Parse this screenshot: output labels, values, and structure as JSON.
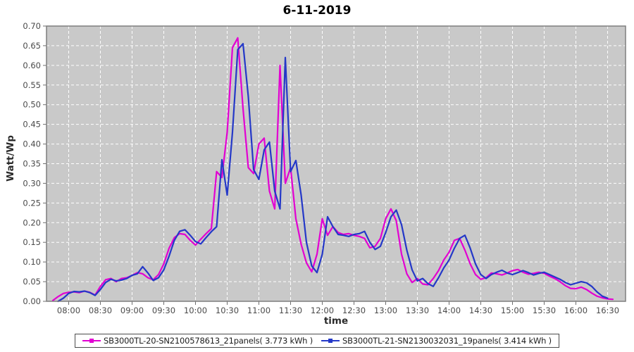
{
  "chart_data": {
    "type": "line",
    "title": "6-11-2019",
    "xlabel": "time",
    "ylabel": "Watt/Wp",
    "ylim": [
      0.0,
      0.7
    ],
    "yticks": [
      "0.00",
      "0.05",
      "0.10",
      "0.15",
      "0.20",
      "0.25",
      "0.30",
      "0.35",
      "0.40",
      "0.45",
      "0.50",
      "0.55",
      "0.60",
      "0.65",
      "0.70"
    ],
    "xticks": [
      "08:00",
      "08:30",
      "09:00",
      "09:30",
      "10:00",
      "10:30",
      "11:00",
      "11:30",
      "12:00",
      "12:30",
      "13:00",
      "13:30",
      "14:00",
      "14:30",
      "15:00",
      "15:30",
      "16:00",
      "16:30"
    ],
    "x_range_minutes": [
      459,
      1007
    ],
    "grid": true,
    "grid_color": "#ffffff",
    "plot_bg": "#c9c9c9",
    "legend_position": "bottom",
    "x": [
      "07:45",
      "07:50",
      "07:55",
      "08:00",
      "08:05",
      "08:10",
      "08:15",
      "08:20",
      "08:25",
      "08:30",
      "08:35",
      "08:40",
      "08:45",
      "08:50",
      "08:55",
      "09:00",
      "09:05",
      "09:10",
      "09:15",
      "09:20",
      "09:25",
      "09:30",
      "09:35",
      "09:40",
      "09:45",
      "09:50",
      "09:55",
      "10:00",
      "10:05",
      "10:10",
      "10:15",
      "10:20",
      "10:25",
      "10:30",
      "10:35",
      "10:40",
      "10:45",
      "10:50",
      "10:55",
      "11:00",
      "11:05",
      "11:10",
      "11:15",
      "11:20",
      "11:25",
      "11:30",
      "11:35",
      "11:40",
      "11:45",
      "11:50",
      "11:55",
      "12:00",
      "12:05",
      "12:10",
      "12:15",
      "12:20",
      "12:25",
      "12:30",
      "12:35",
      "12:40",
      "12:45",
      "12:50",
      "12:55",
      "13:00",
      "13:05",
      "13:10",
      "13:15",
      "13:20",
      "13:25",
      "13:30",
      "13:35",
      "13:40",
      "13:45",
      "13:50",
      "13:55",
      "14:00",
      "14:05",
      "14:10",
      "14:15",
      "14:20",
      "14:25",
      "14:30",
      "14:35",
      "14:40",
      "14:45",
      "14:50",
      "14:55",
      "15:00",
      "15:05",
      "15:10",
      "15:15",
      "15:20",
      "15:25",
      "15:30",
      "15:35",
      "15:40",
      "15:45",
      "15:50",
      "15:55",
      "16:00",
      "16:05",
      "16:10",
      "16:15",
      "16:20",
      "16:25",
      "16:30",
      "16:35"
    ],
    "series": [
      {
        "name": "SB3000TL-20-SN2100578613_21panels( 3.773 kWh )",
        "color": "#e200d2",
        "energy_kwh_label": "3.773 kWh",
        "values": [
          0.002,
          0.012,
          0.02,
          0.023,
          0.024,
          0.022,
          0.026,
          0.023,
          0.016,
          0.038,
          0.055,
          0.058,
          0.05,
          0.058,
          0.06,
          0.066,
          0.073,
          0.07,
          0.06,
          0.055,
          0.068,
          0.095,
          0.135,
          0.162,
          0.172,
          0.17,
          0.155,
          0.143,
          0.158,
          0.172,
          0.185,
          0.33,
          0.315,
          0.43,
          0.645,
          0.67,
          0.49,
          0.34,
          0.325,
          0.4,
          0.415,
          0.28,
          0.235,
          0.6,
          0.3,
          0.34,
          0.21,
          0.145,
          0.098,
          0.075,
          0.12,
          0.21,
          0.168,
          0.19,
          0.175,
          0.17,
          0.172,
          0.168,
          0.165,
          0.16,
          0.136,
          0.14,
          0.16,
          0.21,
          0.235,
          0.205,
          0.12,
          0.07,
          0.048,
          0.058,
          0.044,
          0.042,
          0.058,
          0.078,
          0.105,
          0.125,
          0.155,
          0.16,
          0.13,
          0.095,
          0.068,
          0.056,
          0.06,
          0.072,
          0.07,
          0.067,
          0.072,
          0.078,
          0.081,
          0.074,
          0.069,
          0.071,
          0.074,
          0.071,
          0.064,
          0.058,
          0.05,
          0.04,
          0.033,
          0.032,
          0.036,
          0.03,
          0.021,
          0.013,
          0.009,
          0.006,
          0.005
        ]
      },
      {
        "name": "SB3000TL-21-SN2130032031_19panels( 3.414 kWh )",
        "color": "#2438c8",
        "energy_kwh_label": "3.414 kWh",
        "values": [
          null,
          0.0,
          0.008,
          0.02,
          0.025,
          0.024,
          0.026,
          0.022,
          0.015,
          0.03,
          0.048,
          0.056,
          0.052,
          0.054,
          0.058,
          0.066,
          0.07,
          0.088,
          0.072,
          0.053,
          0.06,
          0.08,
          0.115,
          0.155,
          0.178,
          0.182,
          0.168,
          0.152,
          0.146,
          0.162,
          0.177,
          0.19,
          0.36,
          0.27,
          0.43,
          0.64,
          0.655,
          0.52,
          0.335,
          0.31,
          0.385,
          0.405,
          0.28,
          0.235,
          0.62,
          0.33,
          0.358,
          0.27,
          0.15,
          0.09,
          0.073,
          0.12,
          0.215,
          0.19,
          0.17,
          0.168,
          0.165,
          0.17,
          0.172,
          0.178,
          0.15,
          0.132,
          0.14,
          0.175,
          0.215,
          0.232,
          0.195,
          0.13,
          0.08,
          0.052,
          0.058,
          0.045,
          0.038,
          0.06,
          0.085,
          0.105,
          0.135,
          0.16,
          0.168,
          0.135,
          0.095,
          0.068,
          0.058,
          0.068,
          0.074,
          0.079,
          0.072,
          0.068,
          0.073,
          0.078,
          0.073,
          0.067,
          0.071,
          0.074,
          0.068,
          0.062,
          0.056,
          0.048,
          0.042,
          0.046,
          0.05,
          0.047,
          0.038,
          0.024,
          0.013,
          0.008,
          null
        ]
      }
    ]
  }
}
